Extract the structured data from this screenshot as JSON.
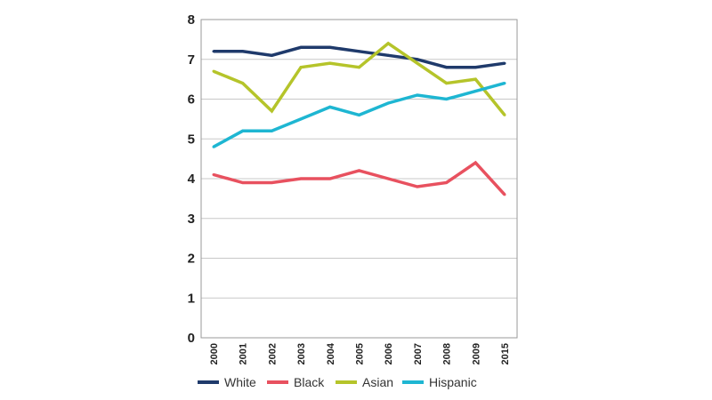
{
  "chart_data": {
    "type": "line",
    "title": "",
    "xlabel": "",
    "ylabel": "",
    "x": [
      "2000",
      "2001",
      "2002",
      "2003",
      "2004",
      "2005",
      "2006",
      "2007",
      "2008",
      "2009",
      "2015"
    ],
    "ylim": [
      0,
      8
    ],
    "yticks": [
      "0",
      "1",
      "2",
      "3",
      "4",
      "5",
      "6",
      "7",
      "8"
    ],
    "grid": "horizontal",
    "legend_position": "bottom",
    "series": [
      {
        "name": "White",
        "color": "#1f3a6b",
        "values": [
          7.2,
          7.2,
          7.1,
          7.3,
          7.3,
          7.2,
          7.1,
          7.0,
          6.8,
          6.8,
          6.9
        ]
      },
      {
        "name": "Black",
        "color": "#e8515f",
        "values": [
          4.1,
          3.9,
          3.9,
          4.0,
          4.0,
          4.2,
          4.0,
          3.8,
          3.9,
          4.4,
          3.6
        ]
      },
      {
        "name": "Asian",
        "color": "#b5c42a",
        "values": [
          6.7,
          6.4,
          5.7,
          6.8,
          6.9,
          6.8,
          7.4,
          6.9,
          6.4,
          6.5,
          5.6
        ]
      },
      {
        "name": "Hispanic",
        "color": "#1eb6d2",
        "values": [
          4.8,
          5.2,
          5.2,
          5.5,
          5.8,
          5.6,
          5.9,
          6.1,
          6.0,
          6.2,
          6.4
        ]
      }
    ]
  }
}
